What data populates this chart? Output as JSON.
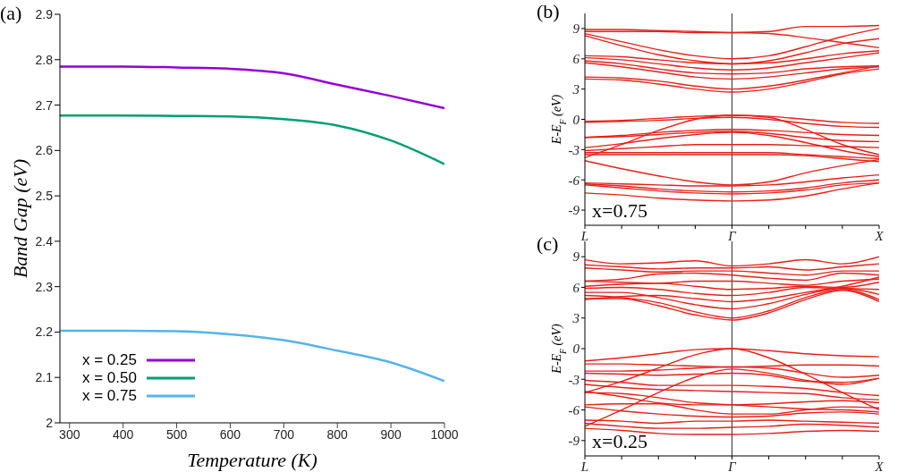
{
  "chart_data": [
    {
      "type": "line",
      "xlabel": "Temperature (K)",
      "ylabel": "Band Gap (eV)",
      "annotations": [
        "(a)"
      ],
      "x": [
        282,
        400,
        500,
        600,
        700,
        800,
        900,
        1000
      ],
      "xlim": [
        282,
        1000
      ],
      "xticks": [
        300,
        400,
        500,
        600,
        700,
        800,
        900,
        1000
      ],
      "ylim": [
        2,
        2.9
      ],
      "yticks": [
        2,
        2.1,
        2.2,
        2.3,
        2.4,
        2.5,
        2.6,
        2.7,
        2.8,
        2.9
      ],
      "grid": false,
      "legend": "bottom left",
      "marker": "none",
      "line_style": "solid",
      "series": [
        {
          "name": "x = 0.25",
          "color": "#9400d3",
          "values": [
            2.785,
            2.785,
            2.783,
            2.78,
            2.77,
            2.745,
            2.72,
            2.693
          ]
        },
        {
          "name": "x = 0.50",
          "color": "#009e73",
          "values": [
            2.677,
            2.677,
            2.676,
            2.675,
            2.669,
            2.655,
            2.622,
            2.57
          ]
        },
        {
          "name": "x = 0.75",
          "color": "#56b4e9",
          "values": [
            2.203,
            2.203,
            2.202,
            2.195,
            2.182,
            2.159,
            2.133,
            2.092
          ]
        }
      ]
    },
    {
      "type": "line",
      "ylabel": "E-E$_{F}$ (eV)",
      "annotations": [
        "(b)",
        "x=0.75"
      ],
      "categories": [
        "L",
        null,
        null,
        null,
        "Γ",
        null,
        null,
        null,
        "X"
      ],
      "ylim": [
        -10.5,
        10.5
      ],
      "yticks": [
        -9,
        -6,
        -3,
        0,
        3,
        6,
        9
      ],
      "grid": false,
      "legend": false,
      "marker": "none",
      "line_style": "solid",
      "ref_lines": [
        {
          "axis": "x",
          "value": "Γ",
          "color": "#000000"
        }
      ],
      "series": [
        {
          "color": "#e8201a",
          "values": [
            8.7,
            8.7,
            8.7,
            8.6,
            8.6,
            8.5,
            8.1,
            7.6,
            7.1
          ]
        },
        {
          "color": "#e8201a",
          "values": [
            8.9,
            8.9,
            8.8,
            8.7,
            8.6,
            8.7,
            9.2,
            9.2,
            9.3
          ]
        },
        {
          "color": "#e8201a",
          "values": [
            8.5,
            7.7,
            6.9,
            6.3,
            6.0,
            6.3,
            7.2,
            8.2,
            9.0
          ]
        },
        {
          "color": "#e8201a",
          "values": [
            8.3,
            7.3,
            6.4,
            5.8,
            5.5,
            5.8,
            6.6,
            7.5,
            8.0
          ]
        },
        {
          "color": "#e8201a",
          "values": [
            6.3,
            6.2,
            5.9,
            5.6,
            5.5,
            5.6,
            6.0,
            6.5,
            6.8
          ]
        },
        {
          "color": "#e8201a",
          "values": [
            6.1,
            5.9,
            5.5,
            5.1,
            4.9,
            5.1,
            5.6,
            6.1,
            6.6
          ]
        },
        {
          "color": "#e8201a",
          "values": [
            5.8,
            5.5,
            5.0,
            4.6,
            4.5,
            4.6,
            5.0,
            5.2,
            5.3
          ]
        },
        {
          "color": "#e8201a",
          "values": [
            5.6,
            5.2,
            4.7,
            4.2,
            4.0,
            4.2,
            4.6,
            5.0,
            5.2
          ]
        },
        {
          "color": "#e8201a",
          "values": [
            4.2,
            4.1,
            3.8,
            3.3,
            3.0,
            3.3,
            3.9,
            4.6,
            5.3
          ]
        },
        {
          "color": "#e8201a",
          "values": [
            4.0,
            3.9,
            3.5,
            3.0,
            2.7,
            3.0,
            3.7,
            4.5,
            5.0
          ]
        },
        {
          "color": "#e8201a",
          "values": [
            -0.2,
            -0.1,
            0.1,
            0.3,
            0.4,
            0.3,
            0,
            -0.3,
            -0.4
          ]
        },
        {
          "color": "#e8201a",
          "values": [
            -0.3,
            -0.2,
            -0.1,
            0.1,
            0.2,
            0,
            -0.4,
            -0.7,
            -0.8
          ]
        },
        {
          "color": "#e8201a",
          "values": [
            -3.8,
            -2.5,
            -1.1,
            0,
            0.4,
            0.2,
            -1.0,
            -2.5,
            -3.5
          ]
        },
        {
          "color": "#e8201a",
          "values": [
            -1.8,
            -1.6,
            -1.3,
            -1.1,
            -1.0,
            -1.1,
            -1.3,
            -1.5,
            -1.6
          ]
        },
        {
          "color": "#e8201a",
          "values": [
            -1.8,
            -1.7,
            -1.5,
            -1.3,
            -1.2,
            -1.4,
            -1.8,
            -2.1,
            -2.2
          ]
        },
        {
          "color": "#e8201a",
          "values": [
            -2.8,
            -2.4,
            -1.9,
            -1.5,
            -1.3,
            -1.6,
            -2.3,
            -3.1,
            -3.7
          ]
        },
        {
          "color": "#e8201a",
          "values": [
            -3.1,
            -2.9,
            -2.7,
            -2.5,
            -2.5,
            -2.5,
            -2.6,
            -2.7,
            -2.8
          ]
        },
        {
          "color": "#e8201a",
          "values": [
            -3.3,
            -3.3,
            -3.3,
            -3.3,
            -3.3,
            -3.3,
            -3.5,
            -3.7,
            -3.9
          ]
        },
        {
          "color": "#e8201a",
          "values": [
            -3.5,
            -3.5,
            -3.5,
            -3.5,
            -3.5,
            -3.5,
            -3.6,
            -3.9,
            -4.2
          ]
        },
        {
          "color": "#e8201a",
          "values": [
            -4.1,
            -4.9,
            -5.6,
            -6.2,
            -6.5,
            -6.2,
            -5.3,
            -4.6,
            -4.0
          ]
        },
        {
          "color": "#e8201a",
          "values": [
            -6.3,
            -6.4,
            -6.5,
            -6.6,
            -6.6,
            -6.5,
            -6.2,
            -5.8,
            -5.5
          ]
        },
        {
          "color": "#e8201a",
          "values": [
            -6.4,
            -6.6,
            -6.9,
            -7.1,
            -7.2,
            -7.1,
            -6.8,
            -6.3,
            -6.0
          ]
        },
        {
          "color": "#e8201a",
          "values": [
            -6.5,
            -6.8,
            -7.1,
            -7.3,
            -7.4,
            -7.3,
            -7.0,
            -6.5,
            -6.3
          ]
        },
        {
          "color": "#e8201a",
          "values": [
            -7.3,
            -7.5,
            -7.8,
            -8.0,
            -8.1,
            -8.0,
            -7.6,
            -6.9,
            -6.3
          ]
        }
      ]
    },
    {
      "type": "line",
      "ylabel": "E-E$_{F}$ (eV)",
      "annotations": [
        "(c)",
        "x=0.25"
      ],
      "categories": [
        "L",
        null,
        null,
        null,
        "Γ",
        null,
        null,
        null,
        "X"
      ],
      "ylim": [
        -10.5,
        10.5
      ],
      "yticks": [
        -9,
        -6,
        -3,
        0,
        3,
        6,
        9
      ],
      "grid": false,
      "legend": false,
      "marker": "none",
      "line_style": "solid",
      "ref_lines": [
        {
          "axis": "x",
          "value": "Γ",
          "color": "#000000"
        }
      ],
      "series": [
        {
          "color": "#e8201a",
          "values": [
            8.7,
            8.3,
            8.4,
            8.6,
            8.1,
            8.3,
            8.7,
            8.3,
            9.0
          ]
        },
        {
          "color": "#e8201a",
          "values": [
            8.2,
            8.0,
            7.8,
            7.9,
            7.9,
            8.0,
            7.7,
            8.0,
            8.3
          ]
        },
        {
          "color": "#e8201a",
          "values": [
            7.9,
            7.7,
            7.5,
            7.6,
            7.6,
            7.4,
            7.2,
            7.6,
            7.6
          ]
        },
        {
          "color": "#e8201a",
          "values": [
            6.6,
            6.8,
            7.3,
            7.4,
            7.2,
            6.9,
            6.7,
            7.4,
            7.2
          ]
        },
        {
          "color": "#e8201a",
          "values": [
            6.6,
            6.5,
            6.4,
            6.6,
            6.6,
            6.4,
            6.2,
            6.6,
            6.8
          ]
        },
        {
          "color": "#e8201a",
          "values": [
            6.1,
            6.3,
            6.4,
            6.1,
            5.8,
            5.9,
            6.1,
            6.0,
            6.5
          ]
        },
        {
          "color": "#e8201a",
          "values": [
            5.9,
            6.0,
            5.8,
            5.4,
            5.2,
            5.5,
            6.0,
            5.9,
            5.8
          ]
        },
        {
          "color": "#e8201a",
          "values": [
            5.5,
            5.5,
            5.0,
            4.3,
            3.9,
            4.4,
            5.3,
            5.9,
            5.3
          ]
        },
        {
          "color": "#e8201a",
          "values": [
            5.2,
            5.0,
            4.5,
            3.6,
            3.0,
            3.7,
            5.0,
            5.8,
            4.8
          ]
        },
        {
          "color": "#e8201a",
          "values": [
            4.9,
            4.9,
            4.2,
            3.3,
            2.8,
            3.5,
            4.8,
            5.7,
            4.6
          ]
        },
        {
          "color": "#e8201a",
          "values": [
            4.8,
            5.1,
            5.2,
            4.9,
            4.6,
            4.9,
            5.5,
            6.1,
            7.0
          ]
        },
        {
          "color": "#e8201a",
          "values": [
            -1.2,
            -0.9,
            -0.5,
            -0.1,
            0,
            -0.2,
            -0.5,
            -0.7,
            -0.8
          ]
        },
        {
          "color": "#e8201a",
          "values": [
            -4.3,
            -3.2,
            -1.9,
            -0.6,
            0,
            -0.9,
            -2.5,
            -4.3,
            -6.0
          ]
        },
        {
          "color": "#e8201a",
          "values": [
            -1.5,
            -1.5,
            -1.6,
            -1.7,
            -1.8,
            -1.7,
            -1.6,
            -1.6,
            -1.7
          ]
        },
        {
          "color": "#e8201a",
          "values": [
            -2.2,
            -2.2,
            -2.1,
            -1.9,
            -1.8,
            -1.9,
            -2.4,
            -2.8,
            -2.6
          ]
        },
        {
          "color": "#e8201a",
          "values": [
            -2.4,
            -2.5,
            -2.6,
            -2.5,
            -2.4,
            -2.6,
            -3.2,
            -3.3,
            -2.9
          ]
        },
        {
          "color": "#e8201a",
          "values": [
            -7.6,
            -6.0,
            -4.3,
            -2.8,
            -2.0,
            -2.4,
            -3.1,
            -3.5,
            -2.9
          ]
        },
        {
          "color": "#e8201a",
          "values": [
            -3.1,
            -3.3,
            -3.6,
            -3.6,
            -3.6,
            -3.7,
            -3.9,
            -4.3,
            -4.6
          ]
        },
        {
          "color": "#e8201a",
          "values": [
            -3.5,
            -3.8,
            -4.0,
            -4.1,
            -4.2,
            -4.3,
            -4.4,
            -4.8,
            -5.0
          ]
        },
        {
          "color": "#e8201a",
          "values": [
            -4.2,
            -4.7,
            -5.3,
            -5.5,
            -5.5,
            -5.4,
            -5.2,
            -5.1,
            -5.3
          ]
        },
        {
          "color": "#e8201a",
          "values": [
            -4.3,
            -4.4,
            -4.8,
            -5.3,
            -5.5,
            -5.7,
            -5.9,
            -6.0,
            -6.2
          ]
        },
        {
          "color": "#e8201a",
          "values": [
            -5.5,
            -5.4,
            -5.4,
            -6.0,
            -6.4,
            -6.4,
            -6.0,
            -5.7,
            -5.8
          ]
        },
        {
          "color": "#e8201a",
          "values": [
            -5.7,
            -6.1,
            -6.4,
            -6.6,
            -6.7,
            -6.6,
            -6.3,
            -6.2,
            -6.4
          ]
        },
        {
          "color": "#e8201a",
          "values": [
            -7.0,
            -7.1,
            -7.3,
            -7.1,
            -7.1,
            -7.0,
            -7.1,
            -7.2,
            -7.3
          ]
        },
        {
          "color": "#e8201a",
          "values": [
            -7.3,
            -7.6,
            -7.8,
            -7.8,
            -7.7,
            -7.6,
            -7.4,
            -7.5,
            -7.7
          ]
        },
        {
          "color": "#e8201a",
          "values": [
            -7.8,
            -8.0,
            -8.3,
            -8.4,
            -8.4,
            -8.3,
            -8.1,
            -8.0,
            -8.1
          ]
        }
      ]
    }
  ]
}
